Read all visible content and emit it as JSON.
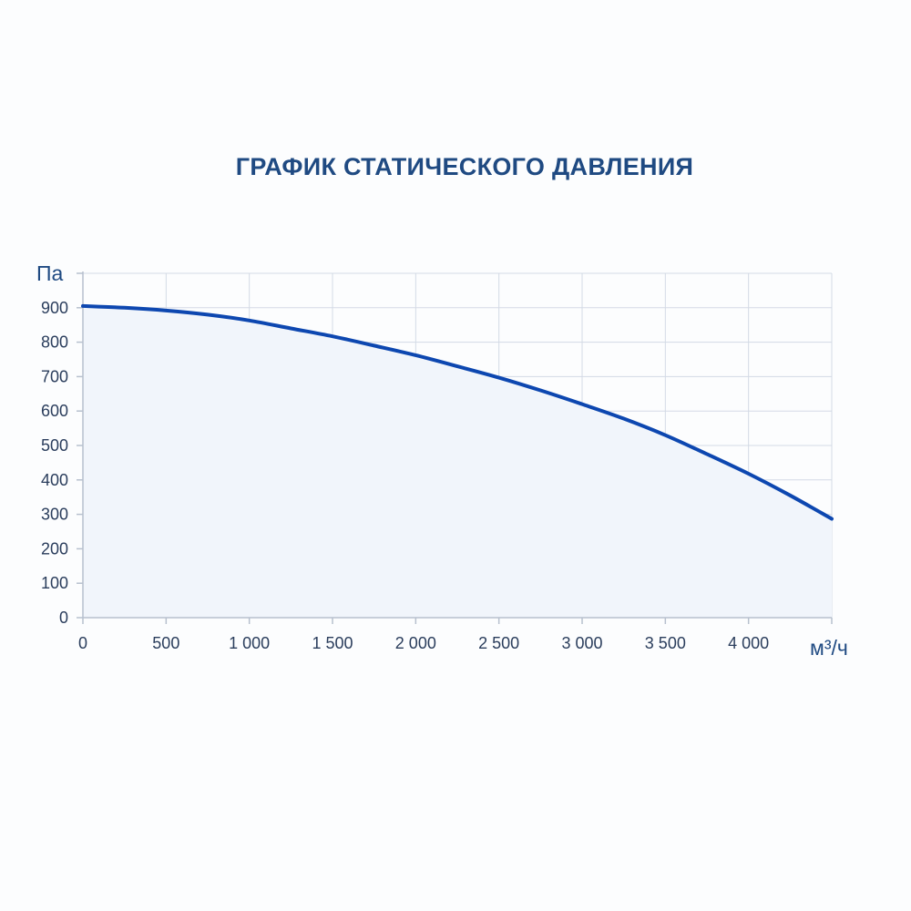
{
  "chart_data": {
    "type": "area",
    "title": "ГРАФИК СТАТИЧЕСКОГО ДАВЛЕНИЯ",
    "xlabel": "м³/ч",
    "ylabel": "Па",
    "xlim": [
      0,
      4500
    ],
    "ylim": [
      0,
      1000
    ],
    "x_ticks": [
      0,
      500,
      1000,
      1500,
      2000,
      2500,
      3000,
      3500,
      4000
    ],
    "x_tick_labels": [
      "0",
      "500",
      "1 000",
      "1 500",
      "2 000",
      "2 500",
      "3 000",
      "3 500",
      "4 000"
    ],
    "y_ticks": [
      0,
      100,
      200,
      300,
      400,
      500,
      600,
      700,
      800,
      900
    ],
    "y_tick_labels": [
      "0",
      "100",
      "200",
      "300",
      "400",
      "500",
      "600",
      "700",
      "800",
      "900"
    ],
    "grid": true,
    "series": [
      {
        "x": [
          0,
          250,
          500,
          750,
          1000,
          1250,
          1500,
          1750,
          2000,
          2250,
          2500,
          2750,
          3000,
          3250,
          3500,
          3750,
          4000,
          4250,
          4500
        ],
        "y": [
          905,
          900,
          892,
          880,
          863,
          840,
          817,
          790,
          762,
          730,
          697,
          660,
          620,
          578,
          530,
          475,
          418,
          355,
          287
        ]
      }
    ],
    "colors": {
      "line": "#0d47b0",
      "fill": "#f1f5fb",
      "grid": "#d3dae5",
      "axis": "#b7c0ce"
    }
  }
}
